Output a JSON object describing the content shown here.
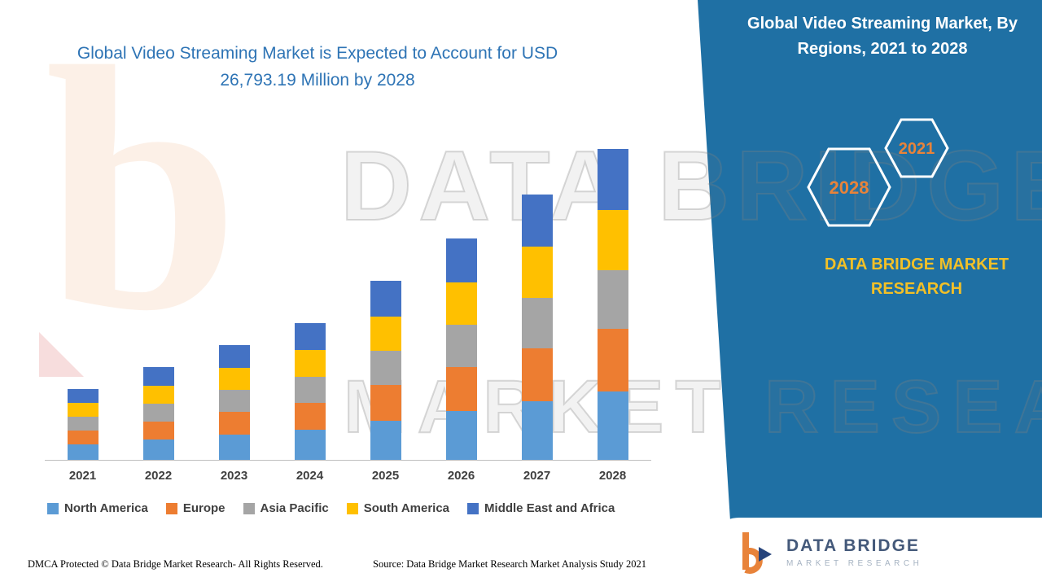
{
  "header": {
    "main_title_line1": "Global Video Streaming Market is Expected to Account for USD",
    "main_title_line2": "26,793.19 Million by 2028",
    "panel_title": "Global Video Streaming Market, By Regions, 2021 to 2028",
    "hex_left": "2028",
    "hex_right": "2021",
    "brand_text": "DATA BRIDGE MARKET RESEARCH"
  },
  "chart_data": {
    "type": "bar",
    "stacked": true,
    "title": "Global Video Streaming Market is Expected to Account for USD 26,793.19 Million by 2028",
    "units": "USD Million",
    "categories": [
      "2021",
      "2022",
      "2023",
      "2024",
      "2025",
      "2026",
      "2027",
      "2028"
    ],
    "series": [
      {
        "name": "North America",
        "color": "#5B9BD5",
        "values": [
          1350,
          1750,
          2180,
          2600,
          3400,
          4200,
          5050,
          5900
        ]
      },
      {
        "name": "Europe",
        "color": "#ED7D31",
        "values": [
          1200,
          1580,
          1960,
          2340,
          3050,
          3780,
          4530,
          5360
        ]
      },
      {
        "name": "Asia Pacific",
        "color": "#A5A5A5",
        "values": [
          1160,
          1520,
          1880,
          2240,
          2930,
          3630,
          4350,
          5090
        ]
      },
      {
        "name": "South America",
        "color": "#FFC000",
        "values": [
          1180,
          1550,
          1920,
          2290,
          2990,
          3710,
          4450,
          5200
        ]
      },
      {
        "name": "Middle East and Africa",
        "color": "#4472C4",
        "values": [
          1210,
          1600,
          1960,
          2330,
          3030,
          3780,
          4520,
          5243.19
        ]
      }
    ],
    "ylim": [
      0,
      27000
    ],
    "grid": false,
    "legend_position": "bottom",
    "final_year_total_label": "26,793.19"
  },
  "footer": {
    "dmca": "DMCA Protected © Data Bridge Market Research- All Rights Reserved.",
    "source": "Source: Data Bridge Market Research Market Analysis Study 2021"
  },
  "logo": {
    "name": "DATA BRIDGE",
    "subtitle": "MARKET RESEARCH"
  },
  "watermark": {
    "line1": "DATA BRIDGE",
    "line2": "MARKET RESEARCH",
    "logo_glyph": "b"
  },
  "colors": {
    "panel_blue": "#1F70A4",
    "title_blue": "#2E74B5",
    "brand_yellow": "#F2C027",
    "hex_number_orange": "#E8833A",
    "axis_gray": "#BFBFBF",
    "label_gray": "#404040"
  }
}
